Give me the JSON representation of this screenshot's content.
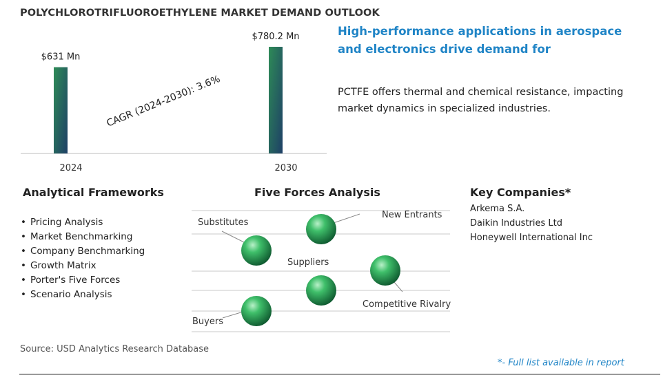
{
  "title": "POLYCHLOROTRIFLUOROETHYLENE MARKET DEMAND OUTLOOK",
  "chart_data": {
    "type": "bar",
    "categories": [
      "2024",
      "2030"
    ],
    "values": [
      631,
      780.2
    ],
    "value_labels": [
      "$631 Mn",
      "$780.2 Mn"
    ],
    "annotation": "CAGR (2024-2030):  3.6%",
    "bar_gradient": [
      "#2e8b57",
      "#1e3f66"
    ]
  },
  "headline": "High-performance applications in aerospace and electronics drive demand for",
  "summary": "PCTFE offers thermal and chemical resistance, impacting market dynamics in specialized industries.",
  "frameworks": {
    "title": "Analytical Frameworks",
    "items": [
      "Pricing Analysis",
      "Market Benchmarking",
      "Company Benchmarking",
      "Growth Matrix",
      "Porter's Five Forces",
      "Scenario Analysis"
    ]
  },
  "five_forces": {
    "title": "Five Forces Analysis",
    "labels": [
      "Substitutes",
      "New Entrants",
      "Suppliers",
      "Competitive Rivalry",
      "Buyers"
    ]
  },
  "companies": {
    "title": "Key Companies*",
    "items": [
      "Arkema S.A.",
      "Daikin Industries Ltd",
      "Honeywell International Inc"
    ]
  },
  "source": "Source: USD Analytics Research Database",
  "footnote": "*- Full list available in report"
}
